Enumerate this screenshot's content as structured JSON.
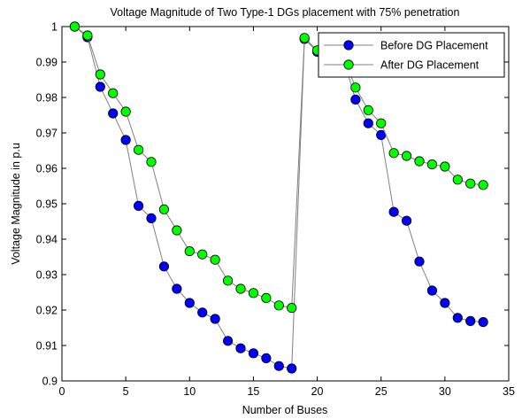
{
  "chart_data": {
    "type": "line",
    "title": "Voltage Magnitude of Two Type-1 DGs placement with 75% penetration",
    "xlabel": "Number of Buses",
    "ylabel": "Voltage Magnitude in p.u",
    "xlim": [
      0,
      35
    ],
    "ylim": [
      0.9,
      1.0
    ],
    "xticks": [
      0,
      5,
      10,
      15,
      20,
      25,
      30,
      35
    ],
    "yticks": [
      0.9,
      0.91,
      0.92,
      0.93,
      0.94,
      0.95,
      0.96,
      0.97,
      0.98,
      0.99,
      1.0
    ],
    "xtick_labels": [
      "0",
      "5",
      "10",
      "15",
      "20",
      "25",
      "30",
      "35"
    ],
    "ytick_labels": [
      "0.9",
      "0.91",
      "0.92",
      "0.93",
      "0.94",
      "0.95",
      "0.96",
      "0.97",
      "0.98",
      "0.99",
      "1"
    ],
    "grid": false,
    "legend_position": "top-right",
    "x": [
      1,
      2,
      3,
      4,
      5,
      6,
      7,
      8,
      9,
      10,
      11,
      12,
      13,
      14,
      15,
      16,
      17,
      18,
      19,
      20,
      21,
      22,
      23,
      24,
      25,
      26,
      27,
      28,
      29,
      30,
      31,
      32,
      33
    ],
    "series": [
      {
        "name": "Before DG Placement",
        "color": "#0000ff",
        "line_color": "#808080",
        "values": [
          1.0,
          0.997,
          0.983,
          0.9755,
          0.968,
          0.9494,
          0.9459,
          0.9323,
          0.926,
          0.922,
          0.9193,
          0.9175,
          0.9113,
          0.9092,
          0.9078,
          0.9064,
          0.9042,
          0.9035,
          0.9965,
          0.9929,
          0.9922,
          0.9915,
          0.9794,
          0.9727,
          0.9694,
          0.9477,
          0.9452,
          0.9337,
          0.9255,
          0.922,
          0.9178,
          0.9169,
          0.9166
        ]
      },
      {
        "name": "After DG Placement",
        "color": "#00ff00",
        "line_color": "#808080",
        "values": [
          1.0,
          0.9975,
          0.9865,
          0.9812,
          0.976,
          0.9652,
          0.9618,
          0.9484,
          0.9425,
          0.9366,
          0.9357,
          0.9342,
          0.9283,
          0.926,
          0.9248,
          0.9234,
          0.9213,
          0.9206,
          0.9968,
          0.9933,
          0.9926,
          0.9919,
          0.9828,
          0.9764,
          0.9727,
          0.9643,
          0.9635,
          0.962,
          0.9611,
          0.9605,
          0.9568,
          0.9557,
          0.9553
        ]
      }
    ]
  }
}
